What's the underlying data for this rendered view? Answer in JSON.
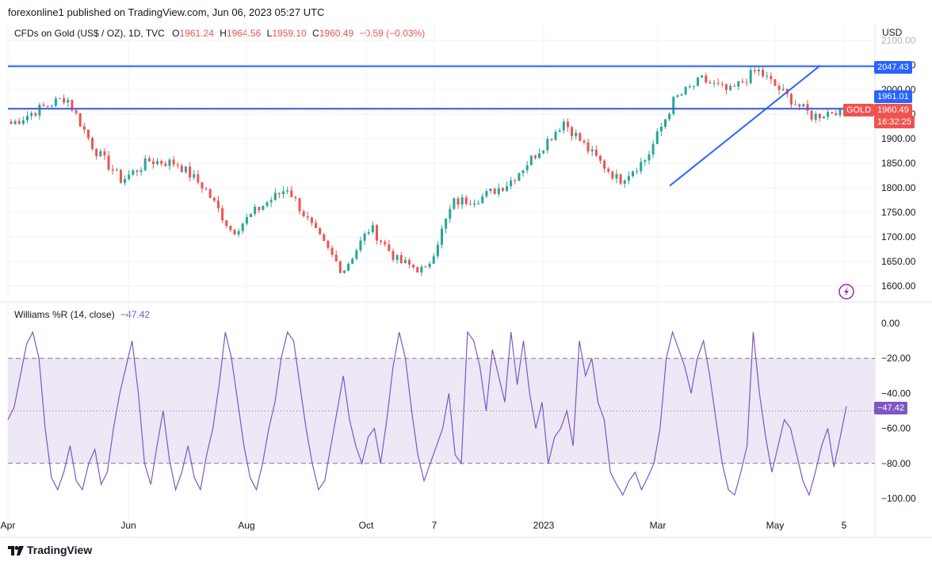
{
  "header": {
    "published": "forexonline1 published on TradingView.com, Jun 06, 2023 05:27 UTC"
  },
  "legend": {
    "symbol": "CFDs on Gold (US$ / OZ), 1D, TVC",
    "o_label": "O",
    "o_value": "1961.24",
    "h_label": "H",
    "h_value": "1964.56",
    "l_label": "L",
    "l_value": "1959.10",
    "c_label": "C",
    "c_value": "1960.49",
    "change": "−0.59 (−0.03%)"
  },
  "indicator": {
    "name": "Williams %R (14, close)",
    "value": "−47.42"
  },
  "price_axis": {
    "unit": "USD"
  },
  "tags": {
    "resistance": "2047.43",
    "line2": "1961.01",
    "symbol": "GOLD",
    "price": "1960.49",
    "countdown": "16:32:25",
    "wr": "−47.42"
  },
  "footer": {
    "brand": "TradingView"
  },
  "colors": {
    "up": "#26a69a",
    "down": "#ef5350",
    "line": "#2962ff",
    "wr": "#7e57c2",
    "wrband": "#ede7f6"
  },
  "chart_data": [
    {
      "type": "candlestick",
      "title": "CFDs on Gold (US$ / OZ), 1D, TVC",
      "ylabel": "USD",
      "ylim": [
        1580,
        2100
      ],
      "y_ticks": [
        "2100.00",
        "2050.00",
        "2000.00",
        "1950.00",
        "1900.00",
        "1850.00",
        "1800.00",
        "1750.00",
        "1700.00",
        "1650.00",
        "1600.00"
      ],
      "x_ticks": [
        "Apr",
        "Jun",
        "Aug",
        "Oct",
        "7",
        "2023",
        "Mar",
        "May",
        "5"
      ],
      "close_path": [
        {
          "x": "Apr 2022",
          "close": 1930
        },
        {
          "x": "Apr 2022 mid",
          "close": 1960
        },
        {
          "x": "Apr 2022 late",
          "close": 1985
        },
        {
          "x": "May 2022",
          "close": 1880
        },
        {
          "x": "May 2022 mid",
          "close": 1815
        },
        {
          "x": "Jun 2022",
          "close": 1855
        },
        {
          "x": "Jun 2022 mid",
          "close": 1850
        },
        {
          "x": "Jul 2022",
          "close": 1800
        },
        {
          "x": "Jul 2022 mid",
          "close": 1710
        },
        {
          "x": "Aug 2022",
          "close": 1760
        },
        {
          "x": "Aug 2022 mid",
          "close": 1800
        },
        {
          "x": "Sep 2022",
          "close": 1710
        },
        {
          "x": "Sep 2022 late",
          "close": 1630
        },
        {
          "x": "Oct 2022",
          "close": 1720
        },
        {
          "x": "Oct 2022 mid",
          "close": 1650
        },
        {
          "x": "Nov 2022",
          "close": 1630
        },
        {
          "x": "Nov 2022 mid",
          "close": 1770
        },
        {
          "x": "Dec 2022",
          "close": 1780
        },
        {
          "x": "Dec 2022 mid",
          "close": 1810
        },
        {
          "x": "Jan 2023",
          "close": 1870
        },
        {
          "x": "Jan 2023 late",
          "close": 1935
        },
        {
          "x": "Feb 2023",
          "close": 1870
        },
        {
          "x": "Feb 2023 late",
          "close": 1815
        },
        {
          "x": "Mar 2023",
          "close": 1860
        },
        {
          "x": "Mar 2023 mid",
          "close": 1980
        },
        {
          "x": "Apr 2023",
          "close": 2020
        },
        {
          "x": "Apr 2023 mid",
          "close": 1995
        },
        {
          "x": "May 2023",
          "close": 2040
        },
        {
          "x": "May 2023 mid",
          "close": 1990
        },
        {
          "x": "May 2023 late",
          "close": 1945
        },
        {
          "x": "Jun 2023",
          "close": 1960.49
        }
      ],
      "resistance_level": 2047.43,
      "horizontal_line": 1961.01,
      "trendline": [
        {
          "x": "Mar 2023",
          "y": 1804
        },
        {
          "x": "May 2023 mid",
          "y": 2049
        }
      ]
    },
    {
      "type": "line",
      "title": "Williams %R (14, close)",
      "ylim": [
        -100,
        0
      ],
      "y_ticks": [
        "0.00",
        "−20.00",
        "−40.00",
        "−60.00",
        "−80.00",
        "−100.00"
      ],
      "bands": [
        -20,
        -80
      ],
      "last_value": -47.42,
      "values": [
        -55,
        -48,
        -30,
        -12,
        -5,
        -20,
        -60,
        -88,
        -95,
        -85,
        -70,
        -90,
        -95,
        -80,
        -72,
        -92,
        -85,
        -60,
        -40,
        -25,
        -10,
        -40,
        -80,
        -92,
        -70,
        -50,
        -78,
        -95,
        -85,
        -70,
        -88,
        -95,
        -75,
        -60,
        -35,
        -5,
        -20,
        -45,
        -70,
        -88,
        -95,
        -80,
        -60,
        -45,
        -20,
        -5,
        -10,
        -35,
        -60,
        -80,
        -95,
        -90,
        -70,
        -50,
        -30,
        -55,
        -70,
        -80,
        -65,
        -60,
        -80,
        -55,
        -25,
        -5,
        -20,
        -50,
        -75,
        -90,
        -80,
        -70,
        -60,
        -40,
        -75,
        -80,
        -5,
        -10,
        -25,
        -50,
        -15,
        -30,
        -45,
        -5,
        -35,
        -10,
        -40,
        -60,
        -45,
        -80,
        -65,
        -60,
        -50,
        -70,
        -10,
        -30,
        -20,
        -45,
        -55,
        -85,
        -92,
        -98,
        -90,
        -85,
        -95,
        -88,
        -80,
        -60,
        -20,
        -5,
        -15,
        -25,
        -40,
        -20,
        -10,
        -30,
        -55,
        -80,
        -95,
        -98,
        -85,
        -70,
        -5,
        -40,
        -65,
        -85,
        -70,
        -55,
        -60,
        -75,
        -90,
        -98,
        -85,
        -70,
        -60,
        -82,
        -65,
        -47.42
      ]
    }
  ]
}
